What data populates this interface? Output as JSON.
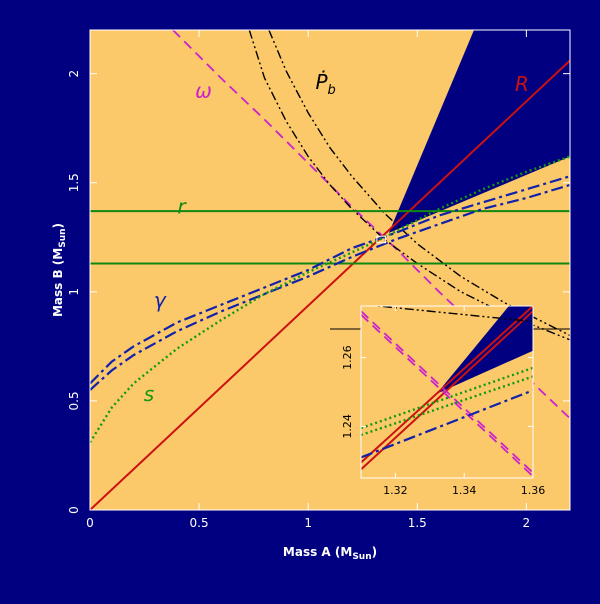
{
  "colors": {
    "background": "#000080",
    "allowed_region": "#fcc96a",
    "excluded_region": "#000080",
    "frame": "#ffffff",
    "axis_text": "#ffffff",
    "omega": "#cc22cc",
    "pbdot": "#000000",
    "R": "#cc1111",
    "r": "#118811",
    "gamma": "#1122aa",
    "s": "#119911"
  },
  "chart_data": [
    {
      "type": "line",
      "title": "",
      "xlabel": "Mass A (M",
      "xlabel_sub": "Sun",
      "xlabel_end": ")",
      "ylabel": "Mass B (M",
      "ylabel_sub": "Sun",
      "ylabel_end": ")",
      "xlim": [
        0,
        2.2
      ],
      "ylim": [
        0,
        2.2
      ],
      "xticks": [
        0,
        0.5,
        1,
        1.5,
        2
      ],
      "yticks": [
        0,
        0.5,
        1,
        1.5,
        2
      ],
      "xtick_labels": [
        "0",
        "0.5",
        "1",
        "1.5",
        "2"
      ],
      "ytick_labels": [
        "0",
        "0.5",
        "1",
        "1.5",
        "2"
      ],
      "grid": false,
      "excluded_region": {
        "x": [
          1.37,
          2.2,
          2.2,
          1.76
        ],
        "y": [
          1.27,
          1.62,
          2.2,
          2.2
        ]
      },
      "series": [
        {
          "label": "ω",
          "style": "dashed",
          "x": [
            0.38,
            0.6,
            0.8,
            1.0,
            1.2,
            1.4,
            1.6,
            1.8,
            2.0,
            2.2
          ],
          "y": [
            2.2,
            1.98,
            1.79,
            1.59,
            1.39,
            1.2,
            1.0,
            0.81,
            0.61,
            0.42
          ]
        },
        {
          "label": "Ṗb",
          "style": "dashdotdot",
          "x": [
            0.73,
            0.8,
            0.9,
            1.0,
            1.1,
            1.2,
            1.35,
            1.5,
            1.7,
            1.9,
            2.2
          ],
          "y": [
            2.2,
            1.98,
            1.78,
            1.62,
            1.49,
            1.38,
            1.24,
            1.13,
            1.0,
            0.9,
            0.78
          ]
        },
        {
          "label": "Ṗb",
          "style": "dashdotdot",
          "x": [
            0.82,
            0.9,
            1.0,
            1.1,
            1.2,
            1.35,
            1.5,
            1.7,
            1.9,
            2.2
          ],
          "y": [
            2.2,
            2.01,
            1.82,
            1.66,
            1.53,
            1.36,
            1.22,
            1.07,
            0.95,
            0.8
          ]
        },
        {
          "label": "R",
          "style": "solid",
          "x": [
            0.0,
            2.2
          ],
          "y": [
            0.0,
            2.06
          ]
        },
        {
          "label": "r",
          "style": "solid",
          "x": [
            0.0,
            2.2
          ],
          "y": [
            1.37,
            1.37
          ]
        },
        {
          "label": "r",
          "style": "solid",
          "x": [
            0.0,
            2.2
          ],
          "y": [
            1.13,
            1.13
          ]
        },
        {
          "label": "γ",
          "style": "dashdot",
          "x": [
            0.0,
            0.1,
            0.2,
            0.4,
            0.6,
            0.8,
            1.0,
            1.2,
            1.4,
            1.6,
            1.8,
            2.0,
            2.2
          ],
          "y": [
            0.58,
            0.68,
            0.75,
            0.86,
            0.94,
            1.02,
            1.1,
            1.2,
            1.27,
            1.35,
            1.41,
            1.47,
            1.53
          ]
        },
        {
          "label": "γ",
          "style": "dashdot",
          "x": [
            0.0,
            0.1,
            0.2,
            0.4,
            0.6,
            0.8,
            1.0,
            1.2,
            1.4,
            1.6,
            1.8,
            2.0,
            2.2
          ],
          "y": [
            0.55,
            0.64,
            0.71,
            0.82,
            0.91,
            0.99,
            1.07,
            1.16,
            1.24,
            1.31,
            1.38,
            1.43,
            1.49
          ]
        },
        {
          "label": "s",
          "style": "dotted",
          "x": [
            0.0,
            0.1,
            0.2,
            0.4,
            0.6,
            0.8,
            1.0,
            1.2,
            1.35,
            1.6,
            1.8,
            2.0,
            2.2
          ],
          "y": [
            0.31,
            0.47,
            0.58,
            0.74,
            0.87,
            0.99,
            1.09,
            1.18,
            1.25,
            1.38,
            1.47,
            1.55,
            1.62
          ]
        }
      ],
      "labels": [
        {
          "text": "ω",
          "x": 0.52,
          "y": 1.89
        },
        {
          "text": "Ṗ",
          "sub": "b",
          "x": 1.08,
          "y": 1.93
        },
        {
          "text": "R",
          "x": 1.98,
          "y": 1.92
        },
        {
          "text": "r",
          "x": 0.42,
          "y": 1.36
        },
        {
          "text": "γ",
          "x": 0.32,
          "y": 0.93
        },
        {
          "text": "s",
          "x": 0.27,
          "y": 0.5
        }
      ],
      "zoom_box": {
        "x": [
          1.315,
          1.355
        ],
        "y": [
          1.225,
          1.255
        ]
      }
    },
    {
      "type": "line",
      "title": "",
      "xlim": [
        1.31,
        1.36
      ],
      "ylim": [
        1.225,
        1.275
      ],
      "xticks": [
        1.32,
        1.34,
        1.36
      ],
      "yticks": [
        1.24,
        1.26
      ],
      "xtick_labels": [
        "1.32",
        "1.34",
        "1.36"
      ],
      "ytick_labels": [
        "1.24",
        "1.26"
      ],
      "excluded_region": {
        "x": [
          1.332,
          1.36,
          1.36,
          1.353
        ],
        "y": [
          1.2495,
          1.262,
          1.275,
          1.275
        ]
      },
      "series": [
        {
          "label": "R",
          "style": "solid",
          "x": [
            1.31,
            1.36
          ],
          "y": [
            1.2295,
            1.275
          ]
        },
        {
          "label": "R",
          "style": "solid",
          "x": [
            1.31,
            1.36
          ],
          "y": [
            1.2275,
            1.2735
          ]
        },
        {
          "label": "ω",
          "style": "dashed",
          "x": [
            1.31,
            1.36
          ],
          "y": [
            1.2735,
            1.2265
          ]
        },
        {
          "label": "ω",
          "style": "dashed",
          "x": [
            1.31,
            1.36
          ],
          "y": [
            1.2725,
            1.2255
          ]
        },
        {
          "label": "γ",
          "style": "dashdot",
          "x": [
            1.31,
            1.36
          ],
          "y": [
            1.231,
            1.2505
          ]
        },
        {
          "label": "s",
          "style": "dotted",
          "x": [
            1.31,
            1.36
          ],
          "y": [
            1.2395,
            1.257
          ]
        },
        {
          "label": "s",
          "style": "dotted",
          "x": [
            1.31,
            1.36
          ],
          "y": [
            1.2375,
            1.2545
          ]
        },
        {
          "label": "Ṗb",
          "style": "dashdotdot",
          "x": [
            1.31,
            1.36
          ],
          "y": [
            1.2755,
            1.2705
          ]
        }
      ]
    }
  ]
}
